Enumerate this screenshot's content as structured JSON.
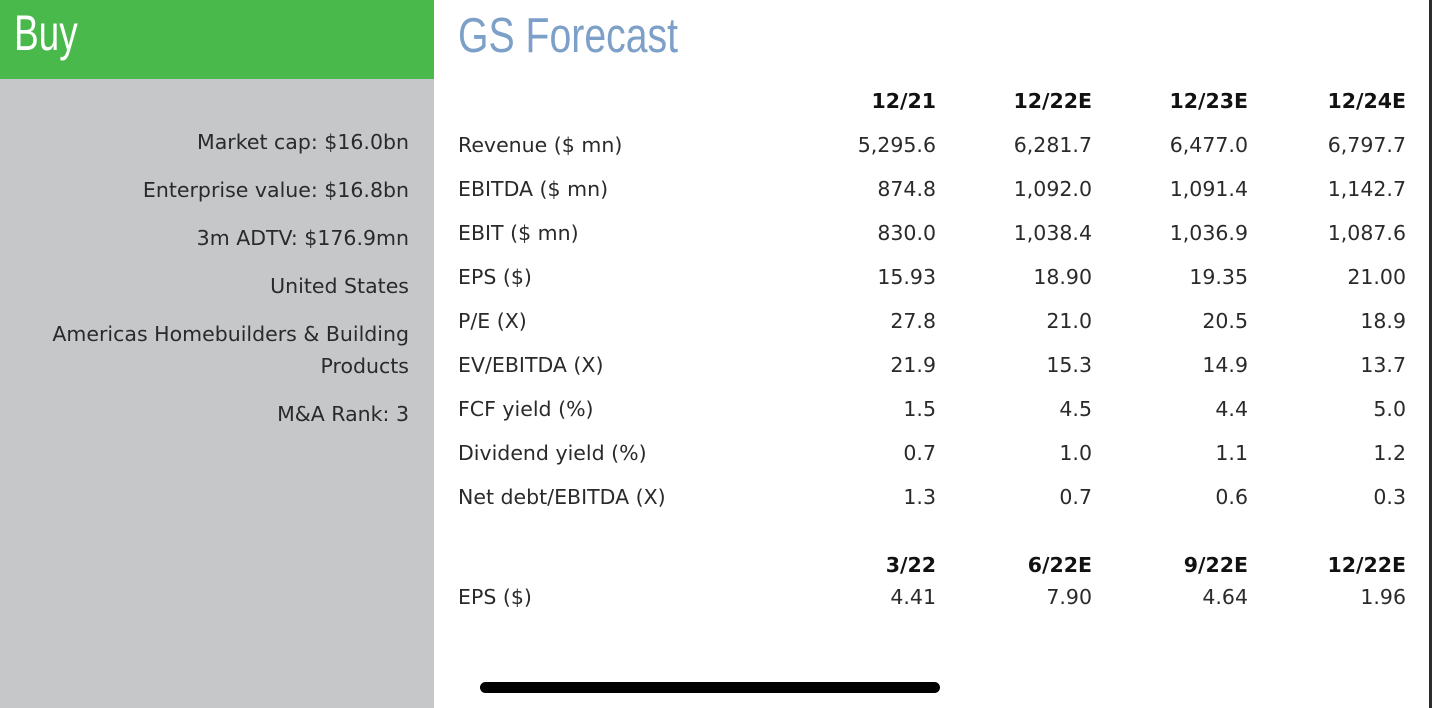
{
  "sidebar": {
    "rating": "Buy",
    "facts": [
      "Market cap: $16.0bn",
      "Enterprise value: $16.8bn",
      "3m ADTV: $176.9mn",
      "United States",
      "Americas Homebuilders & Building Products",
      "M&A Rank: 3"
    ]
  },
  "main": {
    "title": "GS Forecast",
    "annual": {
      "headers": [
        "12/21",
        "12/22E",
        "12/23E",
        "12/24E"
      ],
      "rows": [
        {
          "label": "Revenue ($ mn)",
          "values": [
            "5,295.6",
            "6,281.7",
            "6,477.0",
            "6,797.7"
          ]
        },
        {
          "label": "EBITDA ($ mn)",
          "values": [
            "874.8",
            "1,092.0",
            "1,091.4",
            "1,142.7"
          ]
        },
        {
          "label": "EBIT ($ mn)",
          "values": [
            "830.0",
            "1,038.4",
            "1,036.9",
            "1,087.6"
          ]
        },
        {
          "label": "EPS ($)",
          "values": [
            "15.93",
            "18.90",
            "19.35",
            "21.00"
          ]
        },
        {
          "label": "P/E (X)",
          "values": [
            "27.8",
            "21.0",
            "20.5",
            "18.9"
          ]
        },
        {
          "label": "EV/EBITDA (X)",
          "values": [
            "21.9",
            "15.3",
            "14.9",
            "13.7"
          ]
        },
        {
          "label": "FCF yield (%)",
          "values": [
            "1.5",
            "4.5",
            "4.4",
            "5.0"
          ]
        },
        {
          "label": "Dividend yield (%)",
          "values": [
            "0.7",
            "1.0",
            "1.1",
            "1.2"
          ]
        },
        {
          "label": "Net debt/EBITDA (X)",
          "values": [
            "1.3",
            "0.7",
            "0.6",
            "0.3"
          ]
        }
      ]
    },
    "quarterly": {
      "headers": [
        "3/22",
        "6/22E",
        "9/22E",
        "12/22E"
      ],
      "rows": [
        {
          "label": "EPS ($)",
          "values": [
            "4.41",
            "7.90",
            "4.64",
            "1.96"
          ]
        }
      ]
    }
  },
  "colors": {
    "rating_green": "#4ab94c",
    "sidebar_gray": "#c6c7c9",
    "title_blue": "#7da0c8"
  }
}
